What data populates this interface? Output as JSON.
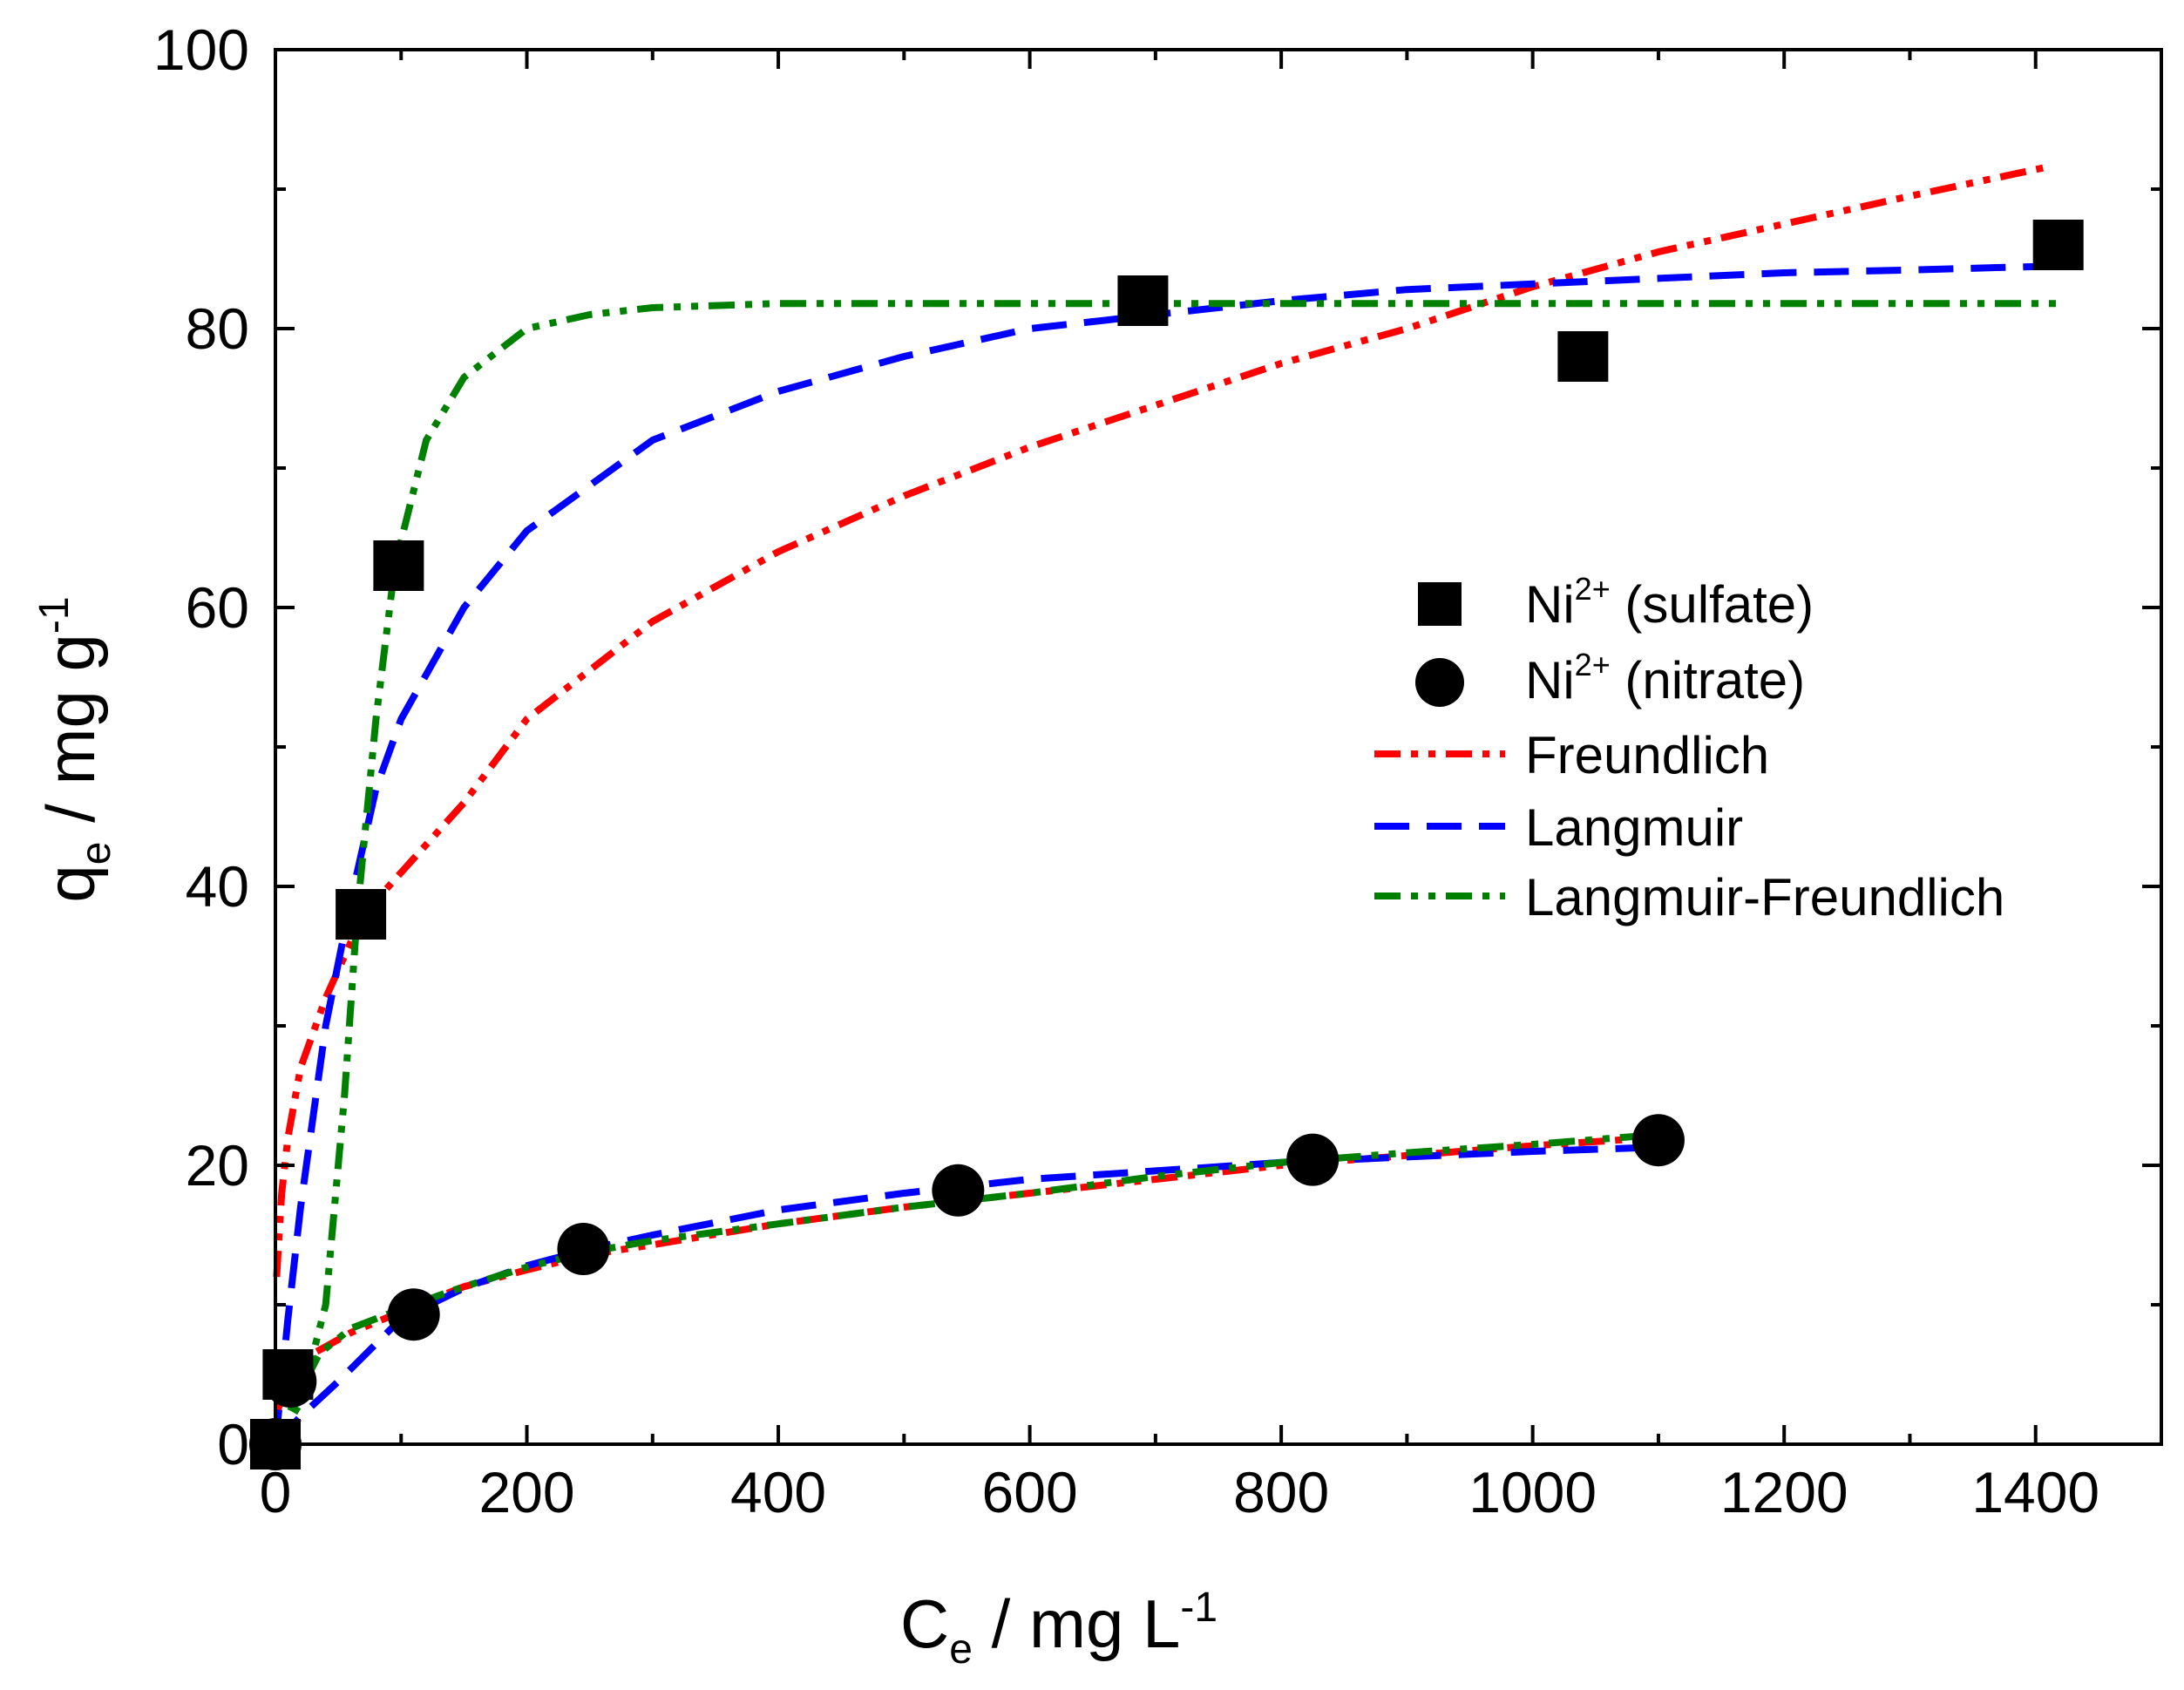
{
  "chart_data": {
    "type": "scatter",
    "x_axis": {
      "label_main": "C",
      "label_sub": "e",
      "label_rest": " / mg L",
      "label_sup": "-1",
      "range": [
        0,
        1500
      ],
      "major_ticks": [
        0,
        200,
        400,
        600,
        800,
        1000,
        1200,
        1400
      ],
      "tick_labels": [
        "0",
        "200",
        "400",
        "600",
        "800",
        "1000",
        "1200",
        "1400"
      ],
      "minor_step": 100
    },
    "y_axis": {
      "label_main": "q",
      "label_sub": "e",
      "label_rest": " / mg g",
      "label_sup": "-1",
      "range": [
        0,
        100
      ],
      "major_ticks": [
        0,
        20,
        40,
        60,
        80,
        100
      ],
      "tick_labels": [
        "0",
        "20",
        "40",
        "60",
        "80",
        "100"
      ],
      "minor_step": 10
    },
    "grid": false,
    "legend_position": "center-right",
    "legend": [
      {
        "key": "sulfate",
        "kind": "square",
        "text": "Ni",
        "sup": "2+",
        "rest": " (sulfate)"
      },
      {
        "key": "nitrate",
        "kind": "circle",
        "text": "Ni",
        "sup": "2+",
        "rest": " (nitrate)"
      },
      {
        "key": "freundlich",
        "kind": "line",
        "text": "Freundlich",
        "sup": "",
        "rest": ""
      },
      {
        "key": "langmuir",
        "kind": "line",
        "text": "Langmuir",
        "sup": "",
        "rest": ""
      },
      {
        "key": "lf",
        "kind": "line",
        "text": "Langmuir-Freundlich",
        "sup": "",
        "rest": ""
      }
    ],
    "series": [
      {
        "name": "Ni2+ (sulfate)",
        "kind": "square",
        "color": "#000000",
        "points": [
          [
            0,
            0
          ],
          [
            10,
            5
          ],
          [
            68,
            38
          ],
          [
            98,
            63
          ],
          [
            690,
            82
          ],
          [
            1040,
            78
          ],
          [
            1418,
            86
          ]
        ]
      },
      {
        "name": "Ni2+ (nitrate)",
        "kind": "circle",
        "color": "#000000",
        "points": [
          [
            0,
            0
          ],
          [
            12,
            4.5
          ],
          [
            110,
            9.3
          ],
          [
            245,
            14
          ],
          [
            543,
            18.2
          ],
          [
            825,
            20.4
          ],
          [
            1100,
            21.8
          ]
        ]
      }
    ],
    "fits": [
      {
        "name": "Freundlich",
        "set": "sulfate",
        "color": "#ff0000",
        "dash": "dash-dot-dot",
        "points": [
          [
            1,
            12
          ],
          [
            5,
            18
          ],
          [
            10,
            22
          ],
          [
            20,
            27
          ],
          [
            40,
            32
          ],
          [
            70,
            38
          ],
          [
            100,
            41
          ],
          [
            150,
            46
          ],
          [
            200,
            52
          ],
          [
            300,
            59
          ],
          [
            400,
            64
          ],
          [
            500,
            68
          ],
          [
            600,
            71.5
          ],
          [
            700,
            74.5
          ],
          [
            800,
            77.5
          ],
          [
            900,
            80
          ],
          [
            1000,
            83
          ],
          [
            1100,
            85.5
          ],
          [
            1200,
            87.5
          ],
          [
            1300,
            89.5
          ],
          [
            1410,
            91.6
          ]
        ]
      },
      {
        "name": "Langmuir",
        "set": "sulfate",
        "color": "#0000ff",
        "dash": "dash",
        "points": [
          [
            0,
            0
          ],
          [
            10,
            9
          ],
          [
            20,
            17
          ],
          [
            40,
            30
          ],
          [
            60,
            39
          ],
          [
            80,
            47
          ],
          [
            100,
            52
          ],
          [
            150,
            60
          ],
          [
            200,
            65.5
          ],
          [
            300,
            72
          ],
          [
            400,
            75.5
          ],
          [
            500,
            78
          ],
          [
            600,
            80
          ],
          [
            700,
            81
          ],
          [
            800,
            82
          ],
          [
            900,
            82.8
          ],
          [
            1000,
            83.2
          ],
          [
            1100,
            83.6
          ],
          [
            1200,
            84
          ],
          [
            1300,
            84.2
          ],
          [
            1420,
            84.5
          ]
        ]
      },
      {
        "name": "Langmuir-Freundlich",
        "set": "sulfate",
        "color": "#008000",
        "dash": "dash-dot-dot",
        "points": [
          [
            0,
            0
          ],
          [
            20,
            3
          ],
          [
            40,
            10
          ],
          [
            55,
            25
          ],
          [
            65,
            38
          ],
          [
            80,
            52
          ],
          [
            95,
            63
          ],
          [
            120,
            72
          ],
          [
            150,
            76.5
          ],
          [
            200,
            80
          ],
          [
            250,
            81
          ],
          [
            300,
            81.5
          ],
          [
            400,
            81.8
          ],
          [
            500,
            81.8
          ],
          [
            700,
            81.8
          ],
          [
            900,
            81.8
          ],
          [
            1100,
            81.8
          ],
          [
            1300,
            81.8
          ],
          [
            1420,
            81.8
          ]
        ]
      },
      {
        "name": "Freundlich",
        "set": "nitrate",
        "color": "#ff0000",
        "dash": "dash-dot-dot",
        "points": [
          [
            2,
            2.5
          ],
          [
            10,
            4.5
          ],
          [
            30,
            6.5
          ],
          [
            60,
            8
          ],
          [
            100,
            9.5
          ],
          [
            150,
            11.3
          ],
          [
            200,
            12.5
          ],
          [
            250,
            13.6
          ],
          [
            300,
            14.3
          ],
          [
            400,
            15.8
          ],
          [
            500,
            17
          ],
          [
            600,
            18
          ],
          [
            700,
            19
          ],
          [
            800,
            20
          ],
          [
            900,
            20.7
          ],
          [
            1000,
            21.4
          ],
          [
            1100,
            22
          ]
        ]
      },
      {
        "name": "Langmuir",
        "set": "nitrate",
        "color": "#0000ff",
        "dash": "dash",
        "points": [
          [
            0,
            0
          ],
          [
            20,
            2
          ],
          [
            50,
            4.5
          ],
          [
            100,
            9
          ],
          [
            150,
            11.2
          ],
          [
            200,
            12.8
          ],
          [
            250,
            14
          ],
          [
            300,
            15
          ],
          [
            400,
            16.8
          ],
          [
            500,
            18
          ],
          [
            600,
            19
          ],
          [
            700,
            19.6
          ],
          [
            800,
            20.2
          ],
          [
            900,
            20.6
          ],
          [
            1000,
            21
          ],
          [
            1100,
            21.3
          ]
        ]
      },
      {
        "name": "Langmuir-Freundlich",
        "set": "nitrate",
        "color": "#008000",
        "dash": "dash-dot-dot",
        "points": [
          [
            0,
            0
          ],
          [
            15,
            3
          ],
          [
            35,
            6.5
          ],
          [
            60,
            8.3
          ],
          [
            100,
            9.7
          ],
          [
            150,
            11.3
          ],
          [
            200,
            12.7
          ],
          [
            250,
            13.8
          ],
          [
            300,
            14.6
          ],
          [
            400,
            15.8
          ],
          [
            500,
            17
          ],
          [
            600,
            18
          ],
          [
            700,
            19.2
          ],
          [
            800,
            20.2
          ],
          [
            900,
            20.9
          ],
          [
            1000,
            21.5
          ],
          [
            1100,
            22.2
          ]
        ]
      }
    ]
  }
}
